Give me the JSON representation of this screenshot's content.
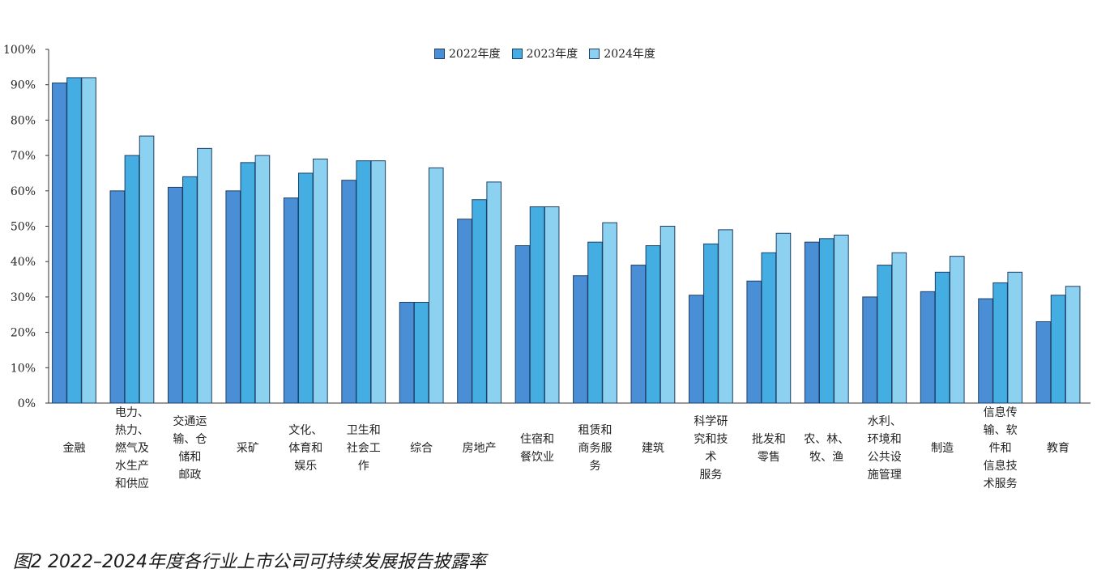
{
  "caption": "图2 2022–2024年度各行业上市公司可持续发展报告披露率",
  "chart_data": {
    "type": "bar",
    "title": "",
    "xlabel": "",
    "ylabel": "",
    "ylim": [
      0,
      100
    ],
    "y_ticks": [
      "0%",
      "10%",
      "20%",
      "30%",
      "40%",
      "50%",
      "60%",
      "70%",
      "80%",
      "90%",
      "100%"
    ],
    "legend_position": "top-center",
    "categories": [
      [
        "金融"
      ],
      [
        "电力、",
        "热力、",
        "燃气及",
        "水生产",
        "和供应"
      ],
      [
        "交通运",
        "输、仓",
        "储和",
        "邮政"
      ],
      [
        "采矿"
      ],
      [
        "文化、",
        "体育和",
        "娱乐"
      ],
      [
        "卫生和",
        "社会工",
        "作"
      ],
      [
        "综合"
      ],
      [
        "房地产"
      ],
      [
        "住宿和",
        "餐饮业"
      ],
      [
        "租赁和",
        "商务服",
        "务"
      ],
      [
        "建筑"
      ],
      [
        "科学研",
        "究和技",
        "术",
        "服务"
      ],
      [
        "批发和",
        "零售"
      ],
      [
        "农、林、",
        "牧、渔"
      ],
      [
        "水利、",
        "环境和",
        "公共设",
        "施管理"
      ],
      [
        "制造"
      ],
      [
        "信息传",
        "输、软",
        "件和",
        "信息技",
        "术服务"
      ],
      [
        "教育"
      ]
    ],
    "series": [
      {
        "name": "2022年度",
        "color": "#4a8fd6",
        "values": [
          90.5,
          60,
          61,
          60,
          58,
          63,
          28.5,
          52,
          44.5,
          36,
          39,
          30.5,
          34.5,
          45.5,
          30,
          31.5,
          29.5,
          23
        ]
      },
      {
        "name": "2023年度",
        "color": "#44aee3",
        "values": [
          92,
          70,
          64,
          68,
          65,
          68.5,
          28.5,
          57.5,
          55.5,
          45.5,
          44.5,
          45,
          42.5,
          46.5,
          39,
          37,
          34,
          30.5
        ]
      },
      {
        "name": "2024年度",
        "color": "#8dd1f0",
        "values": [
          92,
          75.5,
          72,
          70,
          69,
          68.5,
          66.5,
          62.5,
          55.5,
          51,
          50,
          49,
          48,
          47.5,
          42.5,
          41.5,
          37,
          33
        ]
      }
    ]
  }
}
